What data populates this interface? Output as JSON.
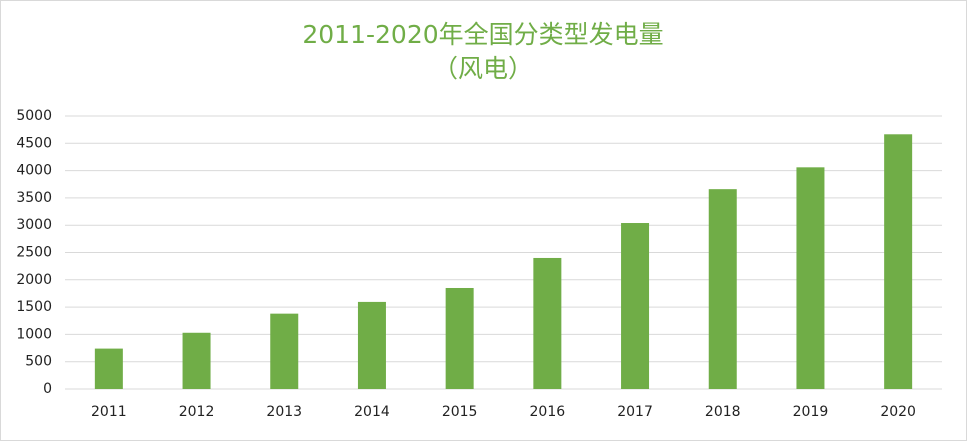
{
  "chart_data": {
    "type": "bar",
    "title": "2011-2020年全国分类型发电量",
    "subtitle": "（风电）",
    "categories": [
      "2011",
      "2012",
      "2013",
      "2014",
      "2015",
      "2016",
      "2017",
      "2018",
      "2019",
      "2020"
    ],
    "values": [
      740,
      1030,
      1380,
      1595,
      1850,
      2400,
      3040,
      3660,
      4060,
      4665
    ],
    "color": "#70ad47",
    "ylim": [
      0,
      5000
    ],
    "yticks": [
      0,
      500,
      1000,
      1500,
      2000,
      2500,
      3000,
      3500,
      4000,
      4500,
      5000
    ],
    "grid": true
  }
}
